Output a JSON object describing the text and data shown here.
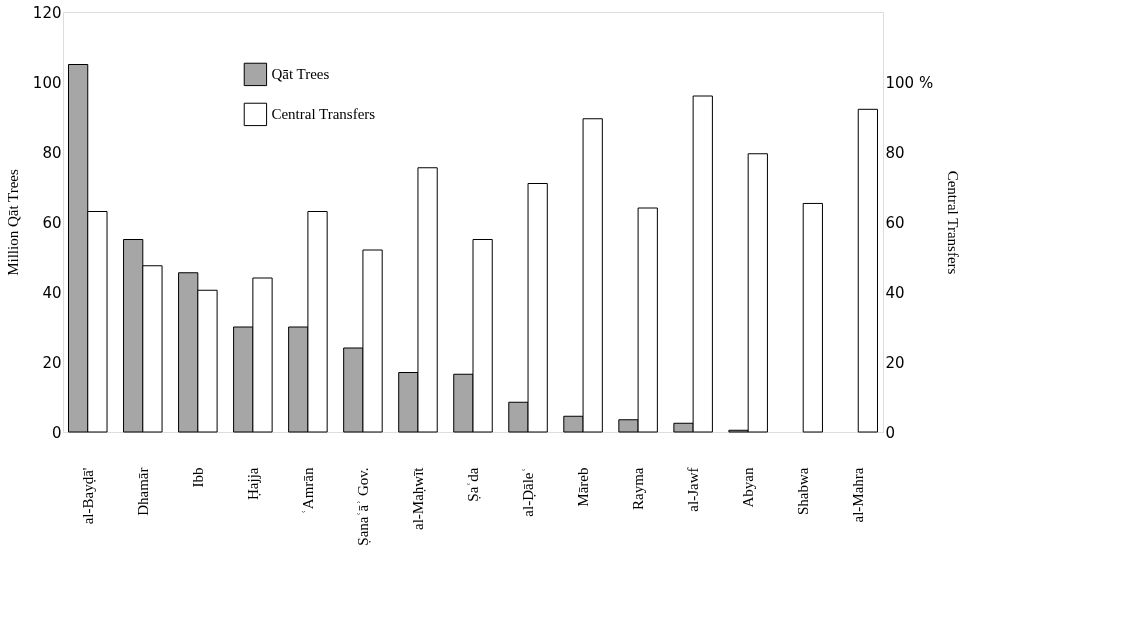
{
  "chart_data": {
    "type": "bar",
    "categories": [
      "al-Bayḍā'",
      "Dhamār",
      "Ibb",
      "Ḥajja",
      "ʿAmrān",
      "Ṣanaʿāʾ Gov.",
      "al-Maḥwīt",
      "Ṣaʿda",
      "al-Ḍāleʿ",
      "Māreb",
      "Rayma",
      "al-Jawf",
      "Abyan",
      "Shabwa",
      "al-Mahra"
    ],
    "series": [
      {
        "name": "Qāt Trees",
        "color": "#a6a6a6",
        "values": [
          105,
          55,
          45.5,
          30,
          30,
          24,
          17,
          16.5,
          8.5,
          4.5,
          3.5,
          2.5,
          0.5,
          null,
          null
        ]
      },
      {
        "name": "Central Transfers",
        "color": "#ffffff",
        "axis": "y2",
        "values": [
          63,
          47.5,
          40.5,
          44,
          63,
          52,
          75.5,
          55,
          71,
          89.5,
          64,
          96,
          79.5,
          65.3,
          92.2
        ]
      }
    ],
    "ylabel": "Million Qāt Trees",
    "y2label": "Central Transfers",
    "ylim": [
      0,
      120
    ],
    "yticks": [
      0,
      20,
      40,
      60,
      80,
      100,
      120
    ],
    "y2lim": [
      0,
      120
    ],
    "y2ticks": [
      0,
      20,
      40,
      60,
      80,
      {
        "value": 100,
        "label": "100 %"
      }
    ],
    "legend": "top",
    "grid": false
  }
}
